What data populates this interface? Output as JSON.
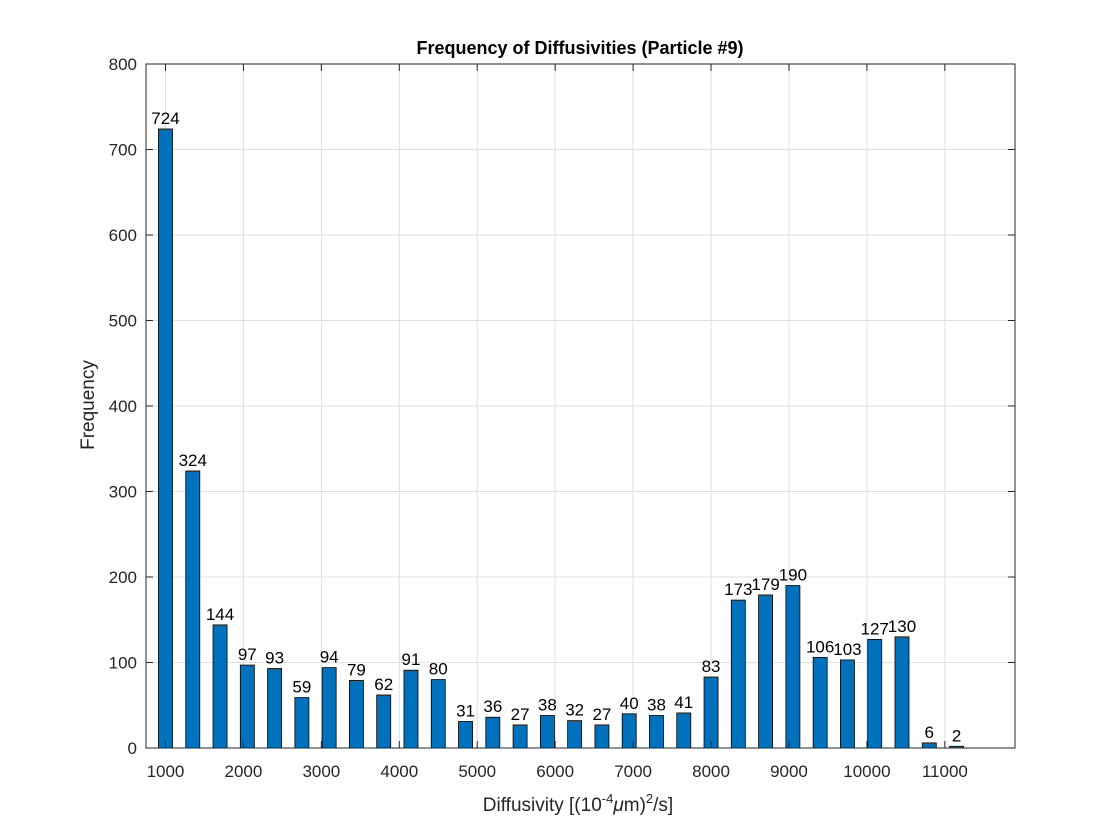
{
  "chart_data": {
    "type": "bar",
    "title": "Frequency of Diffusivities (Particle #9)",
    "xlabel": {
      "prefix": "Diffusivity [(10",
      "exp1": "-4",
      "mu": "μ",
      "mid": "m)",
      "exp2": "2",
      "suffix": "/s]"
    },
    "ylabel": "Frequency",
    "xlim": [
      750,
      11900
    ],
    "ylim": [
      0,
      800
    ],
    "xticks": [
      1000,
      2000,
      3000,
      4000,
      5000,
      6000,
      7000,
      8000,
      9000,
      10000,
      11000
    ],
    "yticks": [
      0,
      100,
      200,
      300,
      400,
      500,
      600,
      700,
      800
    ],
    "grid": true,
    "bar_width": 180,
    "bar_color": "#0072BD",
    "bar_edge_color": "#000000",
    "x": [
      1000,
      1350,
      1700,
      2050,
      2400,
      2750,
      3100,
      3450,
      3800,
      4150,
      4500,
      4850,
      5200,
      5550,
      5900,
      6250,
      6600,
      6950,
      7300,
      7650,
      8000,
      8350,
      8700,
      9050,
      9400,
      9750,
      10100,
      10450,
      10800,
      11150
    ],
    "values": [
      724,
      324,
      144,
      97,
      93,
      59,
      94,
      79,
      62,
      91,
      80,
      31,
      36,
      27,
      38,
      32,
      27,
      40,
      38,
      41,
      83,
      173,
      179,
      190,
      106,
      103,
      127,
      130,
      6,
      2
    ],
    "data_labels": [
      "724",
      "324",
      "144",
      "97",
      "93",
      "59",
      "94",
      "79",
      "62",
      "91",
      "80",
      "31",
      "36",
      "27",
      "38",
      "32",
      "27",
      "40",
      "38",
      "41",
      "83",
      "173",
      "179",
      "190",
      "106",
      "103",
      "127",
      "130",
      "6",
      "2"
    ]
  }
}
